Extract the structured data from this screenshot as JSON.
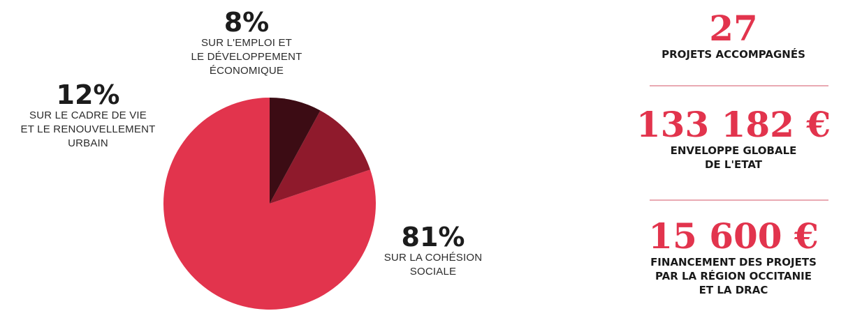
{
  "chart_data": {
    "type": "pie",
    "slices": [
      {
        "label": "SUR LA COHÉSION\nSOCIALE",
        "value": 81,
        "display": "81%",
        "color": "#e2344d"
      },
      {
        "label": "SUR LE CADRE DE VIE\nET LE RENOUVELLEMENT\nURBAIN",
        "value": 12,
        "display": "12%",
        "color": "#8f1a2c"
      },
      {
        "label": "SUR L'EMPLOI ET\nLE DÉVELOPPEMENT\nÉCONOMIQUE",
        "value": 8,
        "display": "8%",
        "color": "#3c0c14"
      }
    ]
  },
  "stats": [
    {
      "value": "27",
      "label": "PROJETS ACCOMPAGNÉS"
    },
    {
      "value": "133 182 €",
      "label": "ENVELOPPE GLOBALE\nDE L'ETAT"
    },
    {
      "value": "15 600 €",
      "label": "FINANCEMENT DES PROJETS\nPAR LA RÉGION OCCITANIE\nET LA DRAC"
    }
  ],
  "colors": {
    "accent": "#e2344d",
    "divider": "#e9a9b2",
    "text": "#1c1c1c"
  }
}
